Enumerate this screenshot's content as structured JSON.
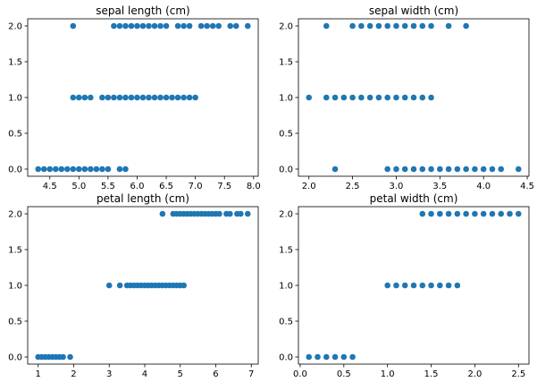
{
  "chart_data": [
    {
      "type": "scatter",
      "title": "sepal length (cm)",
      "xlim": [
        4.12,
        8.08
      ],
      "ylim": [
        -0.1,
        2.1
      ],
      "xticks": [
        "4.5",
        "5.0",
        "5.5",
        "6.0",
        "6.5",
        "7.0",
        "7.5",
        "8.0"
      ],
      "yticks": [
        "0.0",
        "0.5",
        "1.0",
        "1.5",
        "2.0"
      ],
      "color": "#1f77b4",
      "points": {
        "0": [
          4.3,
          4.4,
          4.5,
          4.6,
          4.7,
          4.8,
          4.9,
          5.0,
          5.1,
          5.2,
          5.3,
          5.4,
          5.5,
          5.7,
          5.8
        ],
        "1": [
          4.9,
          5.0,
          5.1,
          5.2,
          5.4,
          5.5,
          5.6,
          5.7,
          5.8,
          5.9,
          6.0,
          6.1,
          6.2,
          6.3,
          6.4,
          6.5,
          6.6,
          6.7,
          6.8,
          6.9,
          7.0
        ],
        "2": [
          4.9,
          5.6,
          5.7,
          5.8,
          5.9,
          6.0,
          6.1,
          6.2,
          6.3,
          6.4,
          6.5,
          6.7,
          6.8,
          6.9,
          7.1,
          7.2,
          7.3,
          7.4,
          7.6,
          7.7,
          7.9
        ]
      }
    },
    {
      "type": "scatter",
      "title": "sepal width (cm)",
      "xlim": [
        1.88,
        4.52
      ],
      "ylim": [
        -0.1,
        2.1
      ],
      "xticks": [
        "2.0",
        "2.5",
        "3.0",
        "3.5",
        "4.0",
        "4.5"
      ],
      "yticks": [
        "0.0",
        "0.5",
        "1.0",
        "1.5",
        "2.0"
      ],
      "color": "#1f77b4",
      "points": {
        "0": [
          2.3,
          2.9,
          3.0,
          3.1,
          3.2,
          3.3,
          3.4,
          3.5,
          3.6,
          3.7,
          3.8,
          3.9,
          4.0,
          4.1,
          4.2,
          4.4
        ],
        "1": [
          2.0,
          2.2,
          2.3,
          2.4,
          2.5,
          2.6,
          2.7,
          2.8,
          2.9,
          3.0,
          3.1,
          3.2,
          3.3,
          3.4
        ],
        "2": [
          2.2,
          2.5,
          2.6,
          2.7,
          2.8,
          2.9,
          3.0,
          3.1,
          3.2,
          3.3,
          3.4,
          3.6,
          3.8
        ]
      }
    },
    {
      "type": "scatter",
      "title": "petal length (cm)",
      "xlim": [
        0.705,
        7.195
      ],
      "ylim": [
        -0.1,
        2.1
      ],
      "xticks": [
        "1",
        "2",
        "3",
        "4",
        "5",
        "6",
        "7"
      ],
      "yticks": [
        "0.0",
        "0.5",
        "1.0",
        "1.5",
        "2.0"
      ],
      "color": "#1f77b4",
      "points": {
        "0": [
          1.0,
          1.1,
          1.2,
          1.3,
          1.4,
          1.5,
          1.6,
          1.7,
          1.9
        ],
        "1": [
          3.0,
          3.3,
          3.5,
          3.6,
          3.7,
          3.8,
          3.9,
          4.0,
          4.1,
          4.2,
          4.3,
          4.4,
          4.5,
          4.6,
          4.7,
          4.8,
          4.9,
          5.0,
          5.1
        ],
        "2": [
          4.5,
          4.8,
          4.9,
          5.0,
          5.1,
          5.2,
          5.3,
          5.4,
          5.5,
          5.6,
          5.7,
          5.8,
          5.9,
          6.0,
          6.1,
          6.3,
          6.4,
          6.6,
          6.7,
          6.9
        ]
      }
    },
    {
      "type": "scatter",
      "title": "petal width (cm)",
      "xlim": [
        -0.02,
        2.62
      ],
      "ylim": [
        -0.1,
        2.1
      ],
      "xticks": [
        "0.0",
        "0.5",
        "1.0",
        "1.5",
        "2.0",
        "2.5"
      ],
      "yticks": [
        "0.0",
        "0.5",
        "1.0",
        "1.5",
        "2.0"
      ],
      "color": "#1f77b4",
      "points": {
        "0": [
          0.1,
          0.2,
          0.3,
          0.4,
          0.5,
          0.6
        ],
        "1": [
          1.0,
          1.1,
          1.2,
          1.3,
          1.4,
          1.5,
          1.6,
          1.7,
          1.8
        ],
        "2": [
          1.4,
          1.5,
          1.6,
          1.7,
          1.8,
          1.9,
          2.0,
          2.1,
          2.2,
          2.3,
          2.4,
          2.5
        ]
      }
    }
  ]
}
